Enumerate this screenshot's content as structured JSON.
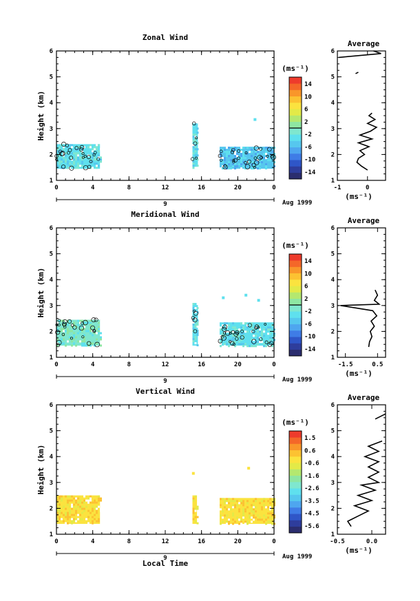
{
  "figure": {
    "xlabel": "Local Time",
    "date_label": "Aug 1999",
    "day_label": "9",
    "ylabel": "Height (km)",
    "unit_label": "(ms⁻¹)",
    "avg_xlabel": "(ms⁻¹)"
  },
  "palette": [
    "#2b2d6e",
    "#2e3d9c",
    "#2f56c8",
    "#3f7ce6",
    "#4ea6ef",
    "#56c7ee",
    "#5fe0ee",
    "#7fe7cf",
    "#8ee6a2",
    "#b4e86f",
    "#e3ea48",
    "#fbe33f",
    "#fcc232",
    "#f9962a",
    "#f46729",
    "#ee3b2c"
  ],
  "chart_data": [
    {
      "type": "heatmap",
      "title": "Zonal Wind",
      "xticks": [
        "0",
        "4",
        "8",
        "12",
        "16",
        "20",
        "0"
      ],
      "xlim": [
        0,
        24
      ],
      "ylim": [
        1,
        6
      ],
      "yticks": [
        "1",
        "2",
        "3",
        "4",
        "5",
        "6"
      ],
      "colorbar_ticks": [
        "14",
        "10",
        "6",
        "2",
        "-2",
        "-6",
        "-10",
        "-14"
      ],
      "colorbar_range": [
        -16,
        16
      ],
      "blocks": [
        {
          "x": [
            0,
            4.8
          ],
          "y": [
            1.45,
            2.4
          ],
          "level": 6
        },
        {
          "x": [
            15.0,
            15.6
          ],
          "y": [
            1.45,
            3.2
          ],
          "level": 6
        },
        {
          "x": [
            18.0,
            24
          ],
          "y": [
            1.45,
            2.3
          ],
          "level": 5
        }
      ],
      "specks": [
        [
          21.9,
          3.35
        ]
      ],
      "average": {
        "title": "Average",
        "xlim": [
          -1,
          0.6
        ],
        "xticks": [
          "-1",
          "0"
        ],
        "xtick_values": [
          -1,
          0
        ],
        "yticks": [
          "1",
          "2",
          "3",
          "4",
          "5",
          "6"
        ],
        "profile": [
          [
            0.0,
            1.4
          ],
          [
            -0.2,
            1.55
          ],
          [
            -0.35,
            1.7
          ],
          [
            -0.3,
            1.85
          ],
          [
            -0.1,
            2.0
          ],
          [
            -0.25,
            2.15
          ],
          [
            0.05,
            2.3
          ],
          [
            -0.3,
            2.45
          ],
          [
            0.15,
            2.6
          ],
          [
            -0.25,
            2.75
          ],
          [
            0.1,
            2.9
          ],
          [
            0.3,
            3.05
          ],
          [
            0.0,
            3.2
          ],
          [
            0.25,
            3.35
          ],
          [
            0.05,
            3.5
          ],
          [
            0.15,
            3.6
          ]
        ],
        "upper": [
          [
            -0.95,
            5.75
          ],
          [
            0.45,
            5.9
          ],
          [
            0.2,
            6.0
          ]
        ],
        "speck": [
          [
            -0.35,
            5.15
          ]
        ]
      }
    },
    {
      "type": "heatmap",
      "title": "Meridional Wind",
      "xticks": [
        "0",
        "4",
        "8",
        "12",
        "16",
        "20",
        "0"
      ],
      "xlim": [
        0,
        24
      ],
      "ylim": [
        1,
        6
      ],
      "yticks": [
        "1",
        "2",
        "3",
        "4",
        "5",
        "6"
      ],
      "colorbar_ticks": [
        "14",
        "10",
        "6",
        "2",
        "-2",
        "-6",
        "-10",
        "-14"
      ],
      "colorbar_range": [
        -16,
        16
      ],
      "blocks": [
        {
          "x": [
            0,
            4.8
          ],
          "y": [
            1.45,
            2.45
          ],
          "level": 7
        },
        {
          "x": [
            15.0,
            15.6
          ],
          "y": [
            1.45,
            3.1
          ],
          "level": 6
        },
        {
          "x": [
            18.0,
            24
          ],
          "y": [
            1.45,
            2.35
          ],
          "level": 6
        }
      ],
      "specks": [
        [
          18.4,
          3.3
        ],
        [
          20.9,
          3.4
        ],
        [
          22.3,
          3.2
        ]
      ],
      "average": {
        "title": "Average",
        "xlim": [
          -2,
          1
        ],
        "xticks": [
          "-1.5",
          "0.5"
        ],
        "xtick_values": [
          -1.5,
          0.5
        ],
        "yticks": [
          "1",
          "2",
          "3",
          "4",
          "5",
          "6"
        ],
        "profile": [
          [
            -0.05,
            1.4
          ],
          [
            0.0,
            1.6
          ],
          [
            0.15,
            1.8
          ],
          [
            0.05,
            2.0
          ],
          [
            0.3,
            2.2
          ],
          [
            0.1,
            2.4
          ],
          [
            0.45,
            2.6
          ],
          [
            0.2,
            2.8
          ],
          [
            -1.8,
            3.0
          ],
          [
            0.6,
            3.05
          ],
          [
            0.3,
            3.2
          ],
          [
            0.5,
            3.4
          ],
          [
            0.35,
            3.6
          ]
        ],
        "upper": [],
        "speck": []
      }
    },
    {
      "type": "heatmap",
      "title": "Vertical Wind",
      "xticks": [
        "0",
        "4",
        "8",
        "12",
        "16",
        "20",
        "0"
      ],
      "xlim": [
        0,
        24
      ],
      "ylim": [
        1,
        6
      ],
      "yticks": [
        "1",
        "2",
        "3",
        "4",
        "5",
        "6"
      ],
      "colorbar_ticks": [
        "1.5",
        "0.6",
        "-0.6",
        "-1.6",
        "-2.6",
        "-3.5",
        "-4.5",
        "-5.6"
      ],
      "colorbar_range": [
        -6,
        2
      ],
      "blocks": [
        {
          "x": [
            0,
            4.8
          ],
          "y": [
            1.4,
            2.5
          ],
          "level": 11
        },
        {
          "x": [
            15.0,
            15.5
          ],
          "y": [
            1.4,
            2.5
          ],
          "level": 11
        },
        {
          "x": [
            18.0,
            24
          ],
          "y": [
            1.4,
            2.4
          ],
          "level": 11
        }
      ],
      "specks": [
        [
          15.1,
          3.35
        ],
        [
          21.2,
          3.55
        ]
      ],
      "average": {
        "title": "Average",
        "xlim": [
          -0.5,
          0.2
        ],
        "xticks": [
          "-0.5",
          "0.0"
        ],
        "xtick_values": [
          -0.5,
          0.0
        ],
        "yticks": [
          "1",
          "2",
          "3",
          "4",
          "5",
          "6"
        ],
        "profile": [
          [
            -0.3,
            1.3
          ],
          [
            -0.35,
            1.5
          ],
          [
            -0.2,
            1.7
          ],
          [
            -0.05,
            1.9
          ],
          [
            -0.25,
            2.1
          ],
          [
            0.0,
            2.3
          ],
          [
            -0.2,
            2.5
          ],
          [
            0.05,
            2.7
          ],
          [
            -0.15,
            2.9
          ],
          [
            0.1,
            3.0
          ],
          [
            -0.05,
            3.2
          ],
          [
            0.1,
            3.4
          ],
          [
            -0.05,
            3.6
          ],
          [
            0.1,
            3.8
          ],
          [
            -0.1,
            4.0
          ],
          [
            0.1,
            4.2
          ],
          [
            -0.05,
            4.4
          ],
          [
            0.15,
            4.6
          ]
        ],
        "upper": [
          [
            0.05,
            5.45
          ],
          [
            0.2,
            5.65
          ]
        ],
        "speck": []
      }
    }
  ]
}
